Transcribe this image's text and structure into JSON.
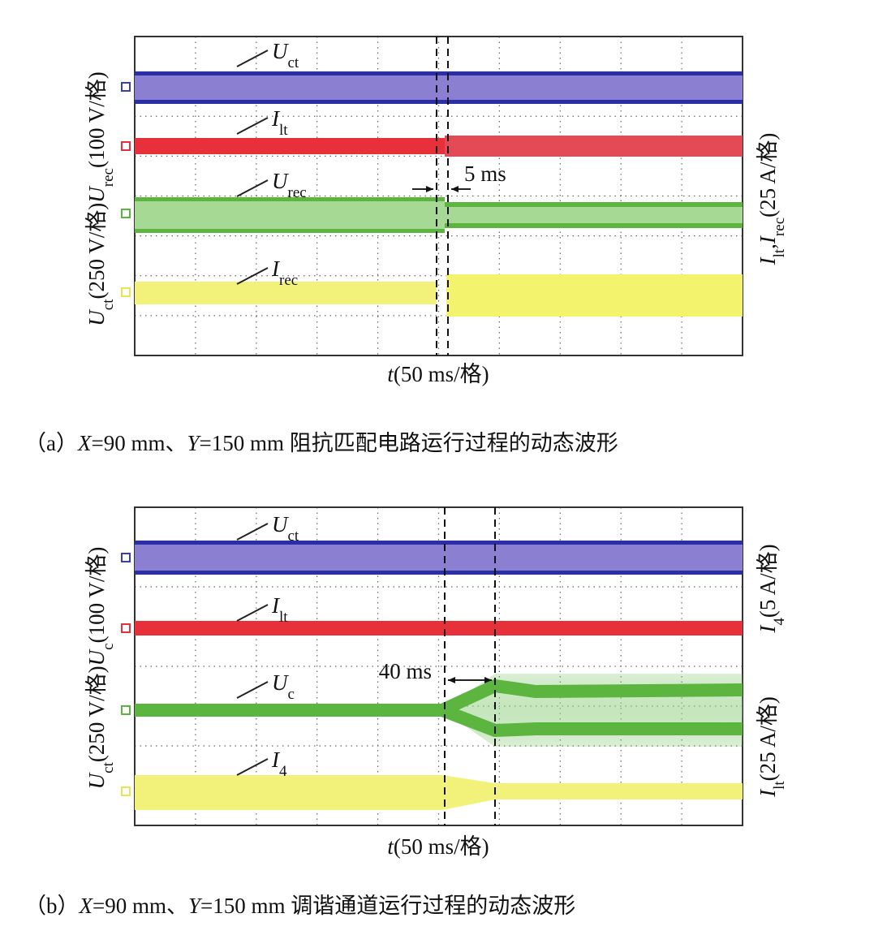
{
  "panels": [
    {
      "left_axis": [
        {
          "symbol": "U",
          "sub": "ct",
          "suffix": "(250 V/格)"
        },
        {
          "symbol": "U",
          "sub": "rec",
          "suffix": "(100 V/格)"
        }
      ],
      "right_axis": [
        [
          {
            "symbol": "I",
            "sub": "lt",
            "suffix": ","
          },
          {
            "symbol": "I",
            "sub": "rec",
            "suffix": "(25 A/格)"
          }
        ]
      ],
      "traces": [
        {
          "symbol": "U",
          "sub": "ct"
        },
        {
          "symbol": "I",
          "sub": "lt"
        },
        {
          "symbol": "U",
          "sub": "rec"
        },
        {
          "symbol": "I",
          "sub": "rec"
        }
      ],
      "annotation": "5 ms",
      "x_axis": {
        "symbol": "t",
        "suffix": "(50 ms/格)"
      },
      "caption": [
        {
          "text": "（a）"
        },
        {
          "italic": "X"
        },
        {
          "text": "=90 mm、"
        },
        {
          "italic": "Y"
        },
        {
          "text": "=150 mm 阻抗匹配电路运行过程的动态波形"
        }
      ]
    },
    {
      "left_axis": [
        {
          "symbol": "U",
          "sub": "ct",
          "suffix": "(250 V/格)"
        },
        {
          "symbol": "U",
          "sub": "c",
          "suffix": "(100 V/格)"
        }
      ],
      "right_axis": [
        [
          {
            "symbol": "I",
            "sub": "lt",
            "suffix": "(25 A/格)"
          }
        ],
        [
          {
            "symbol": "I",
            "sub": "4",
            "suffix": "(5 A/格)"
          }
        ]
      ],
      "traces": [
        {
          "symbol": "U",
          "sub": "ct"
        },
        {
          "symbol": "I",
          "sub": "lt"
        },
        {
          "symbol": "U",
          "sub": "c"
        },
        {
          "symbol": "I",
          "sub": "4"
        }
      ],
      "annotation": "40 ms",
      "x_axis": {
        "symbol": "t",
        "suffix": "(50 ms/格)"
      },
      "caption": [
        {
          "text": "（b）"
        },
        {
          "italic": "X"
        },
        {
          "text": "=90 mm、"
        },
        {
          "italic": "Y"
        },
        {
          "text": "=150 mm 调谐通道运行过程的动态波形"
        }
      ]
    }
  ]
}
